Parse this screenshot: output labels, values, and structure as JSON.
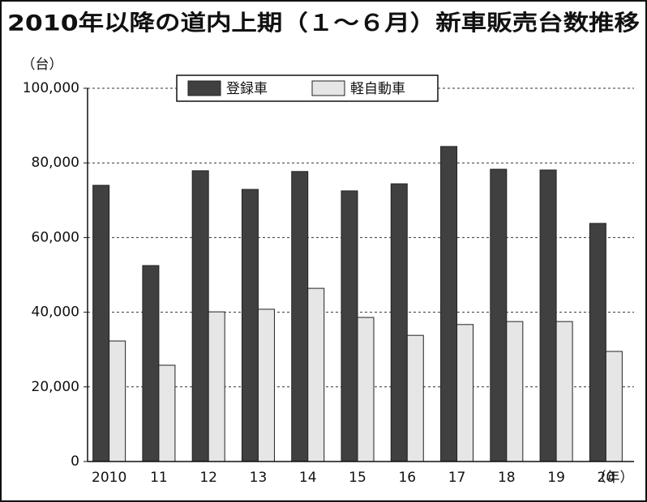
{
  "chart_data": {
    "type": "bar",
    "title": "2010年以降の道内上期（１～６月）新車販売台数推移",
    "y_unit": "（台）",
    "x_unit": "（年）",
    "categories": [
      "2010",
      "11",
      "12",
      "13",
      "14",
      "15",
      "16",
      "17",
      "18",
      "19",
      "20"
    ],
    "series": [
      {
        "name": "登録車",
        "color": "#404040",
        "values": [
          74000,
          52500,
          77900,
          72900,
          77700,
          72500,
          74400,
          84400,
          78300,
          78100,
          63800
        ]
      },
      {
        "name": "軽自動車",
        "color": "#e6e6e6",
        "values": [
          32300,
          25800,
          40100,
          40800,
          46400,
          38600,
          33800,
          36700,
          37500,
          37500,
          29500
        ]
      }
    ],
    "ylim": [
      0,
      100000
    ],
    "yticks": [
      0,
      {
        "value": 20000,
        "label": "20,000"
      },
      {
        "value": 40000,
        "label": "40,000"
      },
      {
        "value": 60000,
        "label": "60,000"
      },
      {
        "value": 80000,
        "label": "80,000"
      },
      {
        "value": 100000,
        "label": "100,000"
      }
    ],
    "grid": true
  }
}
